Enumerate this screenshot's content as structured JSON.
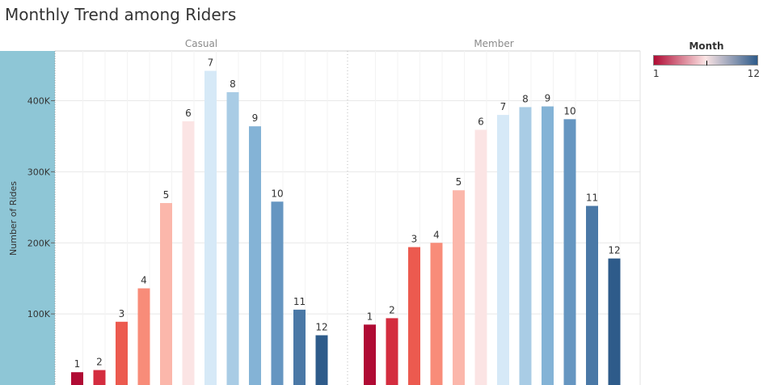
{
  "title": "Monthly Trend among Riders",
  "legend": {
    "title": "Month",
    "min_label": "1",
    "max_label": "12",
    "colors": [
      "#b00b34",
      "#fbe4e4",
      "#2e5b8a"
    ]
  },
  "chart_data": {
    "type": "bar",
    "ylabel": "Number of Rides",
    "ylim": [
      0,
      470000
    ],
    "yticks": [
      100000,
      200000,
      300000,
      400000
    ],
    "ytick_labels": [
      "100K",
      "200K",
      "300K",
      "400K"
    ],
    "categories": [
      "1",
      "2",
      "3",
      "4",
      "5",
      "6",
      "7",
      "8",
      "9",
      "10",
      "11",
      "12"
    ],
    "bar_colors": [
      "#b00b34",
      "#d42d3f",
      "#ec5a4f",
      "#f88c79",
      "#fbb7ab",
      "#fbe4e4",
      "#d6e9f7",
      "#a9cce5",
      "#84b3d6",
      "#6696c1",
      "#4a78a6",
      "#2e5b8a"
    ],
    "panels": [
      {
        "name": "Casual",
        "values": [
          18000,
          21000,
          89000,
          136000,
          256000,
          371000,
          442000,
          412000,
          364000,
          258000,
          106000,
          70000
        ]
      },
      {
        "name": "Member",
        "values": [
          85000,
          94000,
          194000,
          200000,
          274000,
          359000,
          380000,
          391000,
          392000,
          374000,
          252000,
          178000
        ]
      }
    ]
  }
}
